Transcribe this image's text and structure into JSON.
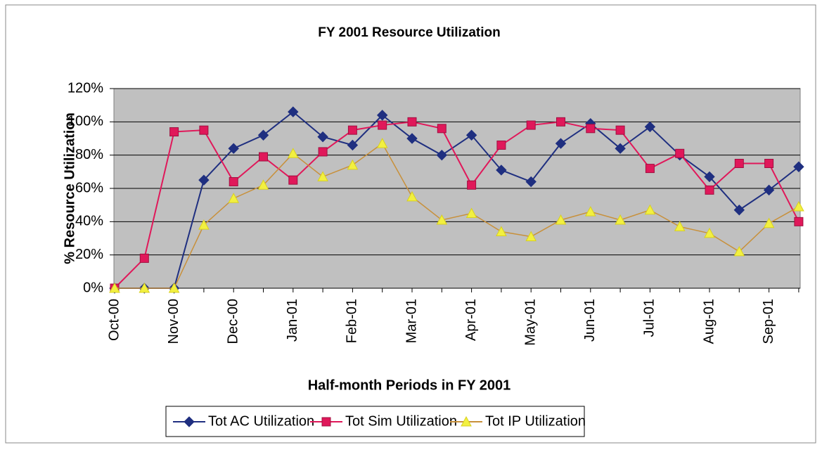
{
  "chart_data": {
    "type": "line",
    "title": "FY 2001 Resource Utilization",
    "x_label": "Half-month Periods in FY 2001",
    "y_label": "% Resource Utilization",
    "categories": [
      "Oct-00",
      null,
      "Nov-00",
      null,
      "Dec-00",
      null,
      "Jan-01",
      null,
      "Feb-01",
      null,
      "Mar-01",
      null,
      "Apr-01",
      null,
      "May-01",
      null,
      "Jun-01",
      null,
      "Jul-01",
      null,
      "Aug-01",
      null,
      "Sep-01",
      null
    ],
    "ylim": [
      0,
      120
    ],
    "yticks": [
      {
        "value": 0,
        "label": "0%"
      },
      {
        "value": 20,
        "label": "20%"
      },
      {
        "value": 40,
        "label": "40%"
      },
      {
        "value": 60,
        "label": "60%"
      },
      {
        "value": 80,
        "label": "80%"
      },
      {
        "value": 100,
        "label": "100%"
      },
      {
        "value": 120,
        "label": "120%"
      }
    ],
    "grid": true,
    "legend": "bottom",
    "series": [
      {
        "name": "Tot AC Utilization",
        "color": "#1f2f80",
        "line_color": "#1f2f80",
        "marker": "diamond",
        "values": [
          0,
          0,
          0,
          65,
          84,
          92,
          106,
          91,
          86,
          104,
          90,
          80,
          92,
          71,
          64,
          87,
          99,
          84,
          97,
          80,
          67,
          47,
          59,
          73
        ]
      },
      {
        "name": "Tot Sim Utilization",
        "color": "#e0185a",
        "line_color": "#e0185a",
        "marker": "square",
        "values": [
          0,
          18,
          94,
          95,
          64,
          79,
          65,
          82,
          95,
          98,
          100,
          96,
          62,
          86,
          98,
          100,
          96,
          95,
          72,
          81,
          59,
          75,
          75,
          40
        ]
      },
      {
        "name": "Tot IP Utilization",
        "color": "#f2f040",
        "line_color": "#c8903a",
        "marker": "triangle",
        "values": [
          0,
          0,
          0,
          38,
          54,
          62,
          81,
          67,
          74,
          87,
          55,
          41,
          45,
          34,
          31,
          41,
          46,
          41,
          47,
          37,
          33,
          22,
          39,
          49
        ]
      }
    ]
  }
}
